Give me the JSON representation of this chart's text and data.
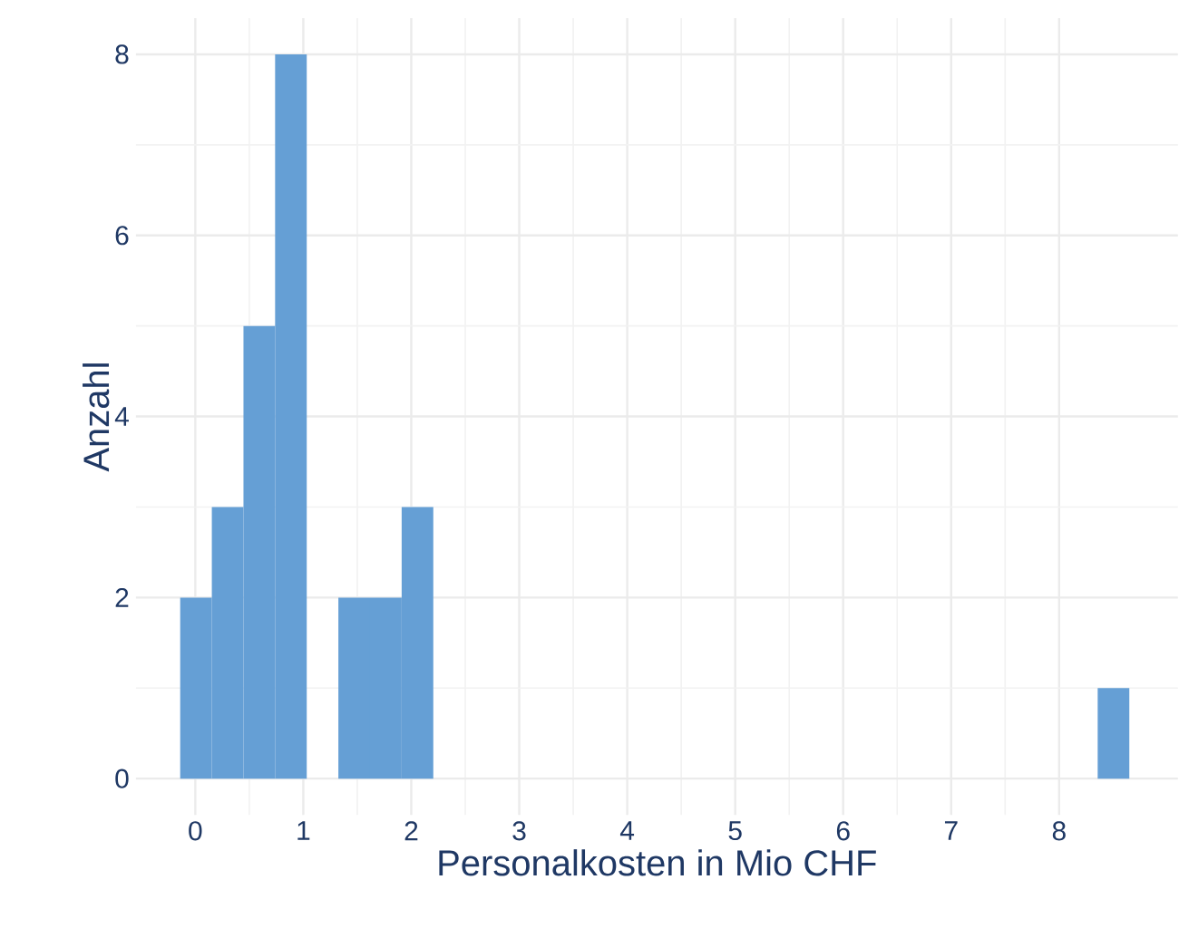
{
  "chart_data": {
    "type": "histogram",
    "xlabel": "Personalkosten in Mio CHF",
    "ylabel": "Anzahl",
    "bins": [
      -0.14,
      0.153,
      0.446,
      0.739,
      1.032,
      1.325,
      1.618,
      1.911,
      2.204,
      2.497,
      2.79,
      3.083,
      3.376,
      3.669,
      3.962,
      4.255,
      4.548,
      4.841,
      5.134,
      5.427,
      5.72,
      6.013,
      6.306,
      6.599,
      6.892,
      7.185,
      7.478,
      7.771,
      8.064,
      8.357,
      8.65
    ],
    "values": [
      2,
      3,
      5,
      8,
      0,
      2,
      2,
      3,
      0,
      0,
      0,
      0,
      0,
      0,
      0,
      0,
      0,
      0,
      0,
      0,
      0,
      0,
      0,
      0,
      0,
      0,
      0,
      0,
      0,
      1
    ],
    "color": "#659fd5",
    "xlim": [
      -0.55,
      9.1
    ],
    "ylim": [
      -0.4,
      8.4
    ],
    "xticks": [
      0,
      1,
      2,
      3,
      4,
      5,
      6,
      7,
      8
    ],
    "yticks": [
      0,
      2,
      4,
      6,
      8
    ],
    "grid": true
  }
}
